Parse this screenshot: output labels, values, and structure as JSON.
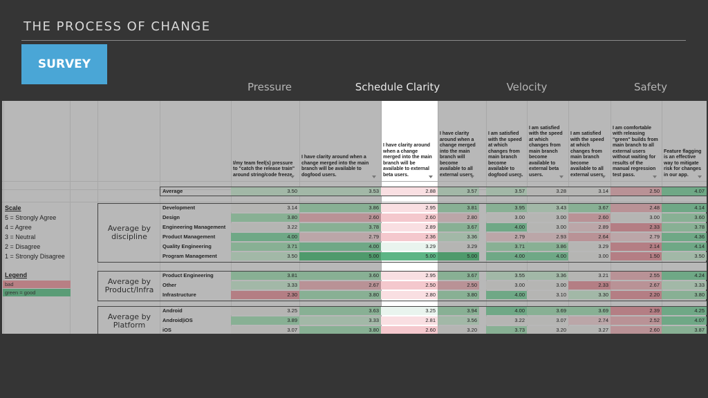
{
  "slide": {
    "title": "THE PROCESS OF CHANGE",
    "badge": "SURVEY"
  },
  "categories": [
    "Pressure",
    "Schedule Clarity",
    "Velocity",
    "Safety"
  ],
  "headers": [
    "I/my team feel(s) pressure to \"catch the release train\" around string/code freeze.",
    "I have clarity around when a change merged into the main branch will be available to dogfood users.",
    "I have clarity around when a change merged into the main branch will be available to external beta users.",
    "I have clarity around when a change merged into the main branch will become available to all external users.",
    "I am satisfied with the speed at which changes from main branch become available to dogfood users.",
    "I am satisfied with the speed at which changes from main branch become available to external beta users.",
    "I am satisfied with the speed at which changes from main branch become available to all external users.",
    "I am comfortable with releasing \"green\" builds from main branch to all external users without waiting for results of the manual regression test pass.",
    "Feature flagging is an effective way to mitigate risk for changes in our app."
  ],
  "scale": {
    "title": "Scale",
    "items": [
      "5 = Strongly Agree",
      "4 = Agree",
      "3 = Neutral",
      "2 = Disagree",
      "1 = Strongly Disagree"
    ]
  },
  "legend": {
    "title": "Legend",
    "bad": "bad",
    "good": "green = good"
  },
  "average": {
    "label": "Average",
    "values": [
      "3.50",
      "3.53",
      "2.88",
      "3.57",
      "3.57",
      "3.28",
      "3.14",
      "2.50",
      "4.07"
    ]
  },
  "groups": [
    {
      "label": "Average by discipline",
      "rows": [
        {
          "label": "Development",
          "values": [
            "3.14",
            "3.86",
            "2.95",
            "3.81",
            "3.95",
            "3.43",
            "3.67",
            "2.48",
            "4.14"
          ]
        },
        {
          "label": "Design",
          "values": [
            "3.80",
            "2.60",
            "2.60",
            "2.80",
            "3.00",
            "3.00",
            "2.60",
            "3.00",
            "3.60"
          ]
        },
        {
          "label": "Engineering Management",
          "values": [
            "3.22",
            "3.78",
            "2.89",
            "3.67",
            "4.00",
            "3.00",
            "2.89",
            "2.33",
            "3.78"
          ]
        },
        {
          "label": "Product Management",
          "values": [
            "4.00",
            "2.79",
            "2.36",
            "3.36",
            "2.79",
            "2.93",
            "2.64",
            "2.79",
            "4.36"
          ]
        },
        {
          "label": "Quality Engineering",
          "values": [
            "3.71",
            "4.00",
            "3.29",
            "3.29",
            "3.71",
            "3.86",
            "3.29",
            "2.14",
            "4.14"
          ]
        },
        {
          "label": "Program Management",
          "values": [
            "3.50",
            "5.00",
            "5.00",
            "5.00",
            "4.00",
            "4.00",
            "3.00",
            "1.50",
            "3.50"
          ]
        }
      ]
    },
    {
      "label": "Average by Product/Infra",
      "rows": [
        {
          "label": "Product Engineering",
          "values": [
            "3.81",
            "3.60",
            "2.95",
            "3.67",
            "3.55",
            "3.36",
            "3.21",
            "2.55",
            "4.24"
          ]
        },
        {
          "label": "Other",
          "values": [
            "3.33",
            "2.67",
            "2.50",
            "2.50",
            "3.00",
            "3.00",
            "2.33",
            "2.67",
            "3.33"
          ]
        },
        {
          "label": "Infrastructure",
          "values": [
            "2.30",
            "3.80",
            "2.80",
            "3.80",
            "4.00",
            "3.10",
            "3.30",
            "2.20",
            "3.80"
          ]
        }
      ]
    },
    {
      "label": "Average by Platform",
      "rows": [
        {
          "label": "Android",
          "values": [
            "3.25",
            "3.63",
            "3.25",
            "3.94",
            "4.00",
            "3.69",
            "3.69",
            "2.39",
            "4.25"
          ]
        },
        {
          "label": "Android|iOS",
          "values": [
            "3.89",
            "3.33",
            "2.81",
            "3.56",
            "3.22",
            "3.07",
            "2.74",
            "2.52",
            "4.07"
          ]
        },
        {
          "label": "iOS",
          "values": [
            "3.07",
            "3.80",
            "2.60",
            "3.20",
            "3.73",
            "3.20",
            "3.27",
            "2.60",
            "3.87"
          ]
        }
      ]
    }
  ],
  "colors": {
    "background": "#353535",
    "sheet": "#b8b8b8",
    "badge": "#4aa6d6",
    "highlight_column": "#ffffff",
    "good": "#5a9c76",
    "bad": "#b87f84"
  }
}
